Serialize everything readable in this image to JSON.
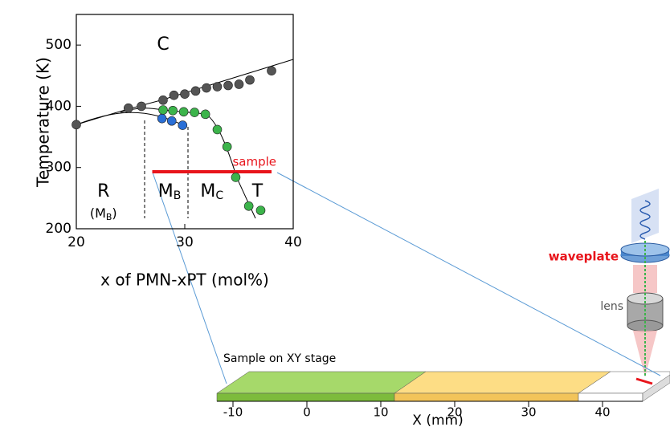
{
  "chart_data": {
    "type": "scatter",
    "xlabel": "x of PMN-xPT (mol%)",
    "ylabel": "Temperature (K)",
    "xlim": [
      20,
      40
    ],
    "ylim": [
      200,
      550
    ],
    "xticks": [
      20,
      30,
      40
    ],
    "yticks": [
      200,
      300,
      400,
      500
    ],
    "series": [
      {
        "color": "#555555",
        "x": [
          20,
          24.8,
          26,
          28,
          29,
          30,
          31,
          32,
          33,
          34,
          35,
          36,
          38
        ],
        "values": [
          370,
          397,
          400,
          410,
          418,
          420,
          425,
          430,
          432,
          434,
          436,
          443,
          458
        ]
      },
      {
        "color": "#3cb44b",
        "x": [
          28,
          28.9,
          29.9,
          30.9,
          31.9,
          33,
          33.9,
          34.7,
          35.9,
          37
        ],
        "values": [
          394,
          393,
          391,
          390,
          387,
          362,
          334,
          284,
          237,
          230
        ]
      },
      {
        "color": "#2a6fd6",
        "x": [
          27.9,
          28.8,
          29.8
        ],
        "values": [
          380,
          376,
          369
        ]
      }
    ],
    "annotations": [
      {
        "text": "C",
        "x": 28,
        "y": 500
      },
      {
        "text": "R",
        "x": 22.5,
        "y": 260
      },
      {
        "text": "(M",
        "sub": "B",
        "tail": ")",
        "x": 22.5,
        "y": 225
      },
      {
        "text": "M",
        "sub": "B",
        "x": 28.6,
        "y": 260
      },
      {
        "text": "M",
        "sub": "B",
        "x": 32.5,
        "y": 260,
        "sub_override": "C"
      },
      {
        "text": "T",
        "x": 36.7,
        "y": 260
      }
    ],
    "sample": {
      "label": "sample",
      "x": [
        27,
        38
      ],
      "y": 293,
      "color": "#e8141b"
    }
  },
  "schematic": {
    "stage_label": "Sample on XY stage",
    "axis_label": "X (mm)",
    "stage_ticks": [
      -10,
      0,
      10,
      20,
      30,
      40
    ],
    "waveplate": "waveplate",
    "lens": "lens"
  }
}
